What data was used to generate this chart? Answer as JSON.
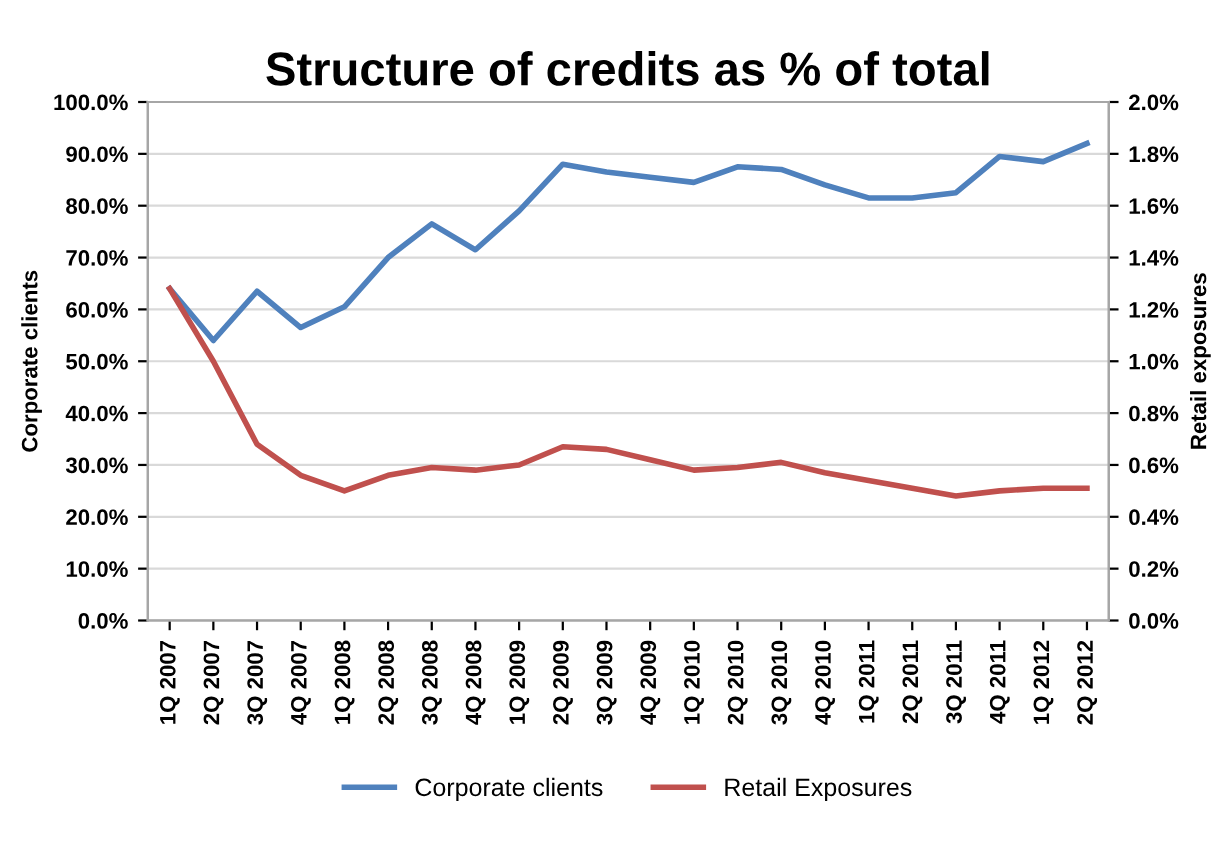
{
  "chart_data": {
    "type": "line",
    "title": "Structure of credits as % of total",
    "ylabel": "Corporate clients",
    "y2label": "Retail exposures",
    "categories": [
      "1Q 2007",
      "2Q 2007",
      "3Q 2007",
      "4Q 2007",
      "1Q 2008",
      "2Q 2008",
      "3Q 2008",
      "4Q 2008",
      "1Q 2009",
      "2Q 2009",
      "3Q 2009",
      "4Q 2009",
      "1Q 2010",
      "2Q 2010",
      "3Q 2010",
      "4Q 2010",
      "1Q 2011",
      "2Q 2011",
      "3Q 2011",
      "4Q 2011",
      "1Q 2012",
      "2Q 2012"
    ],
    "series": [
      {
        "name": "Corporate clients",
        "color": "#4f81bd",
        "values": [
          64,
          54,
          63.5,
          56.5,
          60.5,
          70,
          76.5,
          71.5,
          79,
          88,
          86.5,
          85.5,
          84.5,
          87.5,
          87,
          84,
          81.5,
          81.5,
          82.5,
          89.5,
          88.5,
          92
        ]
      },
      {
        "name": "Retail Exposures",
        "color": "#c0504d",
        "axis": "y2",
        "values": [
          1.28,
          1.0,
          0.68,
          0.56,
          0.5,
          0.56,
          0.59,
          0.58,
          0.6,
          0.67,
          0.66,
          0.62,
          0.58,
          0.59,
          0.61,
          0.57,
          0.54,
          0.51,
          0.48,
          0.5,
          0.51,
          0.51
        ]
      }
    ],
    "ylim": [
      0,
      100
    ],
    "yticks": [
      {
        "value": 0,
        "label": "0.0%"
      },
      {
        "value": 10,
        "label": "10.0%"
      },
      {
        "value": 20,
        "label": "20.0%"
      },
      {
        "value": 30,
        "label": "30.0%"
      },
      {
        "value": 40,
        "label": "40.0%"
      },
      {
        "value": 50,
        "label": "50.0%"
      },
      {
        "value": 60,
        "label": "60.0%"
      },
      {
        "value": 70,
        "label": "70.0%"
      },
      {
        "value": 80,
        "label": "80.0%"
      },
      {
        "value": 90,
        "label": "90.0%"
      },
      {
        "value": 100,
        "label": "100.0%"
      }
    ],
    "y2lim": [
      0,
      2
    ],
    "y2ticks": [
      {
        "value": 0,
        "label": "0.0%"
      },
      {
        "value": 0.2,
        "label": "0.2%"
      },
      {
        "value": 0.4,
        "label": "0.4%"
      },
      {
        "value": 0.6,
        "label": "0.6%"
      },
      {
        "value": 0.8,
        "label": "0.8%"
      },
      {
        "value": 1.0,
        "label": "1.0%"
      },
      {
        "value": 1.2,
        "label": "1.2%"
      },
      {
        "value": 1.4,
        "label": "1.4%"
      },
      {
        "value": 1.6,
        "label": "1.6%"
      },
      {
        "value": 1.8,
        "label": "1.8%"
      },
      {
        "value": 2.0,
        "label": "2.0%"
      }
    ],
    "grid": "y",
    "legend": "bottom",
    "marker": "none",
    "line_style": "solid"
  }
}
